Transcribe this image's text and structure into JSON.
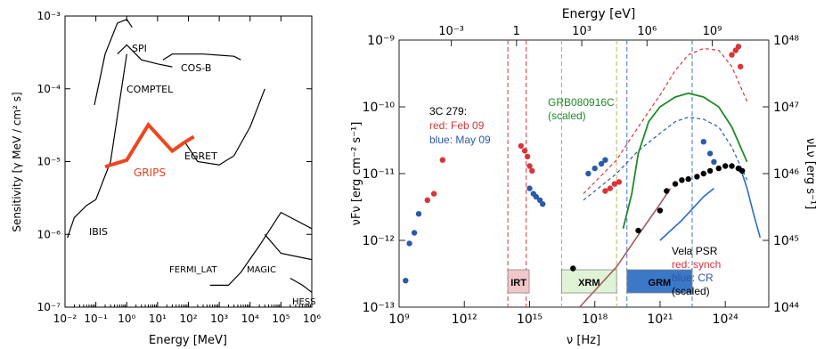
{
  "left_chart": {
    "ylabel": "Sensitivity  [γ MeV / cm² s]",
    "xlabel": "Energy  [MeV]",
    "chart_data": {
      "type": "line",
      "xscale": "log",
      "yscale": "log",
      "xlim": [
        0.01,
        1000000
      ],
      "ylim": [
        1e-07,
        0.001
      ],
      "grid": false,
      "x_ticks": [
        "10⁻²",
        "10⁻¹",
        "10⁰",
        "10¹",
        "10²",
        "10³",
        "10⁴",
        "10⁵",
        "10⁶"
      ],
      "y_ticks": [
        "10⁻³",
        "10⁻⁴",
        "10⁻⁵",
        "10⁻⁶",
        "10⁻⁷"
      ],
      "series": [
        {
          "name": "SPI",
          "x": [
            0.09,
            0.2,
            0.5,
            1.0,
            1.5
          ],
          "y": [
            6e-05,
            0.0003,
            0.0008,
            0.0009,
            0.0007
          ]
        },
        {
          "name": "COMPTEL",
          "x": [
            0.5,
            1,
            3,
            10,
            30
          ],
          "y": [
            0.0003,
            0.0004,
            0.00025,
            0.00022,
            0.0002
          ]
        },
        {
          "name": "COS-B",
          "x": [
            15,
            30,
            300,
            3000,
            5000
          ],
          "y": [
            0.00025,
            0.0003,
            0.0003,
            0.00028,
            0.00025
          ]
        },
        {
          "name": "EGRET",
          "x": [
            80,
            200,
            1000,
            3000,
            10000,
            30000
          ],
          "y": [
            1.8e-05,
            1e-05,
            9e-06,
            1.2e-05,
            3e-05,
            0.0001
          ]
        },
        {
          "name": "IBIS",
          "x": [
            0.012,
            0.02,
            0.05,
            0.1,
            0.3,
            1.0
          ],
          "y": [
            9e-07,
            1.7e-06,
            2.5e-06,
            3e-06,
            1e-05,
            0.0003
          ]
        },
        {
          "name": "GRIPS",
          "x": [
            0.2,
            1,
            5,
            30,
            70,
            150
          ],
          "y": [
            8.5e-06,
            1.05e-05,
            3.2e-05,
            1.4e-05,
            1.8e-05,
            2.2e-05
          ]
        },
        {
          "name": "FERMI_LAT",
          "x": [
            500,
            1000,
            2000,
            5000,
            20000,
            100000,
            1000000
          ],
          "y": [
            2e-07,
            2e-07,
            2e-07,
            3e-07,
            7e-07,
            2e-06,
            1.2e-06
          ]
        },
        {
          "name": "MAGIC",
          "x": [
            30000,
            100000,
            1000000
          ],
          "y": [
            1e-06,
            5.5e-07,
            4.5e-07
          ]
        },
        {
          "name": "HESS",
          "x": [
            200000,
            500000,
            1000000
          ],
          "y": [
            2.5e-07,
            2e-07,
            1.6e-07
          ]
        }
      ]
    },
    "labels": {
      "spi": "SPI",
      "comptel": "COMPTEL",
      "cosb": "COS-B",
      "egret": "EGRET",
      "grips": "GRIPS",
      "ibis": "IBIS",
      "fermi": "FERMI_LAT",
      "magic": "MAGIC",
      "hess": "HESS"
    }
  },
  "right_chart": {
    "top_axis_label": "Energy [eV]",
    "xlabel": "ν [Hz]",
    "ylabel_left": "νFν [erg cm⁻² s⁻¹]",
    "ylabel_right": "νLν [erg s⁻¹]",
    "chart_data": {
      "type": "scatter",
      "xscale": "log",
      "yscale": "log",
      "xlim": [
        1000000000.0,
        1e+26
      ],
      "ylim": [
        1e-13,
        1e-09
      ],
      "x_ticks": [
        "10⁹",
        "10¹²",
        "10¹⁵",
        "10¹⁸",
        "10²¹",
        "10²⁴"
      ],
      "top_ticks": [
        "10⁻³",
        "1",
        "10³",
        "10⁶",
        "10⁹"
      ],
      "y_ticks_left": [
        "10⁻⁹",
        "10⁻¹⁰",
        "10⁻¹¹",
        "10⁻¹²",
        "10⁻¹³"
      ],
      "y_ticks_right": [
        "10⁴⁸",
        "10⁴⁷",
        "10⁴⁶",
        "10⁴⁵",
        "10⁴⁴"
      ],
      "series": [
        {
          "name": "red: Feb 09",
          "color": "#d9343a",
          "x": [
            20000000000.0,
            40000000000.0,
            100000000000.0,
            400000000000000.0,
            600000000000000.0,
            800000000000000.0,
            1000000000000000.0,
            1300000000000000.0,
            3e+18,
            5e+18,
            8e+18,
            1.3e+19,
            2e+24,
            3e+24,
            4e+24,
            5e+24
          ],
          "y": [
            4e-12,
            5e-12,
            1.6e-11,
            2.6e-11,
            2.2e-11,
            1.8e-11,
            1.3e-11,
            1.1e-11,
            5.5e-12,
            6e-12,
            7e-12,
            7.5e-12,
            6e-10,
            7e-10,
            8e-10,
            4e-10
          ]
        },
        {
          "name": "blue: May 09",
          "color": "#2c5aa8",
          "x": [
            2000000000.0,
            3000000000.0,
            5000000000.0,
            8000000000.0,
            1000000000000000.0,
            1500000000000000.0,
            2000000000000000.0,
            3000000000000000.0,
            4000000000000000.0,
            5e+17,
            1e+18,
            2e+18,
            3e+18,
            1e+23,
            2e+23,
            3e+23
          ],
          "y": [
            2.5e-13,
            9e-13,
            1.3e-12,
            2.5e-12,
            6e-12,
            5e-12,
            4.5e-12,
            4e-12,
            3.5e-12,
            1e-11,
            1.2e-11,
            1.4e-11,
            1.6e-11,
            3e-11,
            2e-11,
            1.5e-11
          ]
        },
        {
          "name": "Vela PSR",
          "color": "#000000",
          "x": [
            1e+17,
            1e+20,
            1e+21,
            2e+21,
            5e+21,
            1e+22,
            2e+22,
            5e+22,
            1e+23,
            2e+23,
            5e+23,
            1e+24,
            2e+24,
            4e+24,
            6e+24
          ],
          "y": [
            3.8e-13,
            1.4e-12,
            2.8e-12,
            5.5e-12,
            7e-12,
            8e-12,
            8.3e-12,
            9e-12,
            1e-11,
            1.1e-11,
            1.2e-11,
            1.3e-11,
            1.3e-11,
            1.2e-11,
            1.1e-11
          ]
        }
      ],
      "curves": [
        {
          "name": "GRB080916C (scaled)",
          "color": "#1f8a28",
          "style": "solid"
        },
        {
          "name": "red: synch",
          "color": "#a45a5a",
          "style": "solid"
        },
        {
          "name": "blue: CR",
          "color": "#2b6cc4",
          "style": "solid"
        }
      ],
      "bands": [
        {
          "name": "IRT",
          "from": 100000000000000.0,
          "to": 700000000000000.0,
          "color": "#f2c7c9"
        },
        {
          "name": "XRM",
          "from": 3e+16,
          "to": 1e+19,
          "color": "#d9f2d2"
        },
        {
          "name": "GRM",
          "from": 3e+19,
          "to": 3e+22,
          "color": "#3b78c8"
        }
      ]
    },
    "annotations": {
      "src3c": "3C 279:",
      "red_feb": "red: Feb 09",
      "blue_may": "blue: May 09",
      "grb1": "GRB080916C",
      "grb2": "(scaled)",
      "vela1": "Vela PSR",
      "vela_red": "red: synch",
      "vela_blue": "blue: CR",
      "vela_scaled": "(scaled)",
      "irt": "IRT",
      "xrm": "XRM",
      "grm": "GRM"
    }
  }
}
